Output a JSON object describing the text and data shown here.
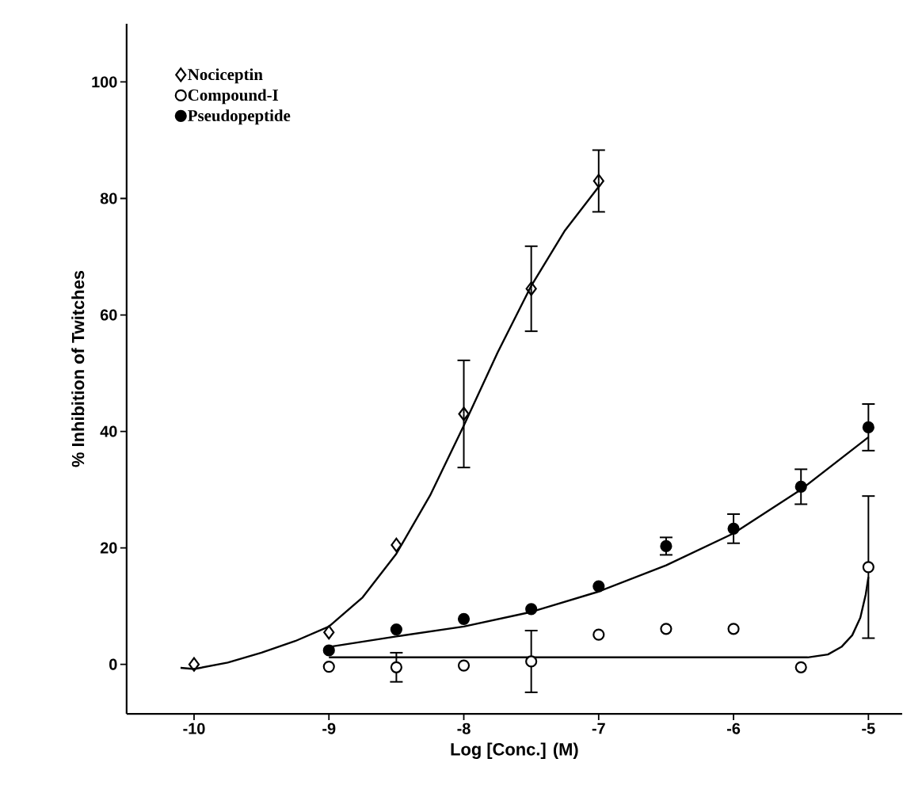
{
  "chart_data": {
    "type": "scatter",
    "xlabel": "Log [Conc.] (M)",
    "ylabel": "% Inhibition of Twitches",
    "xlim": [
      -10.5,
      -4.75
    ],
    "ylim": [
      -8.5,
      110
    ],
    "xticks": [
      -10,
      -9,
      -8,
      -7,
      -6,
      -5
    ],
    "yticks": [
      0,
      20,
      40,
      60,
      80,
      100
    ],
    "grid": false,
    "legend": "top left",
    "series": [
      {
        "name": "Nociceptin",
        "marker": "diamond",
        "color": "#000000",
        "x": [
          -10,
          -9,
          -8.5,
          -8,
          -7.5,
          -7
        ],
        "values": [
          0,
          5.5,
          20.5,
          43,
          64.5,
          83
        ],
        "errors": [
          null,
          null,
          null,
          9.2,
          7.3,
          5.3
        ]
      },
      {
        "name": "Compound-I",
        "marker": "circle",
        "color": "#000000",
        "x": [
          -9,
          -8.5,
          -8,
          -7.5,
          -7,
          -6.5,
          -6,
          -5.5,
          -5
        ],
        "values": [
          -0.4,
          -0.5,
          -0.2,
          0.5,
          5.1,
          6.1,
          6.1,
          -0.5,
          16.7
        ],
        "errors": [
          null,
          [
            -3,
            2
          ],
          null,
          5.3,
          null,
          null,
          null,
          null,
          12.2
        ]
      },
      {
        "name": "Pseudopeptide",
        "marker": "circle",
        "color": "#000000",
        "x": [
          -9,
          -8.5,
          -8,
          -7.5,
          -7,
          -6.5,
          -6,
          -5.5,
          -5
        ],
        "values": [
          2.4,
          6,
          7.8,
          9.5,
          13.4,
          20.3,
          23.3,
          30.5,
          40.7
        ],
        "errors": [
          null,
          null,
          null,
          null,
          null,
          1.5,
          2.5,
          3,
          4
        ]
      },
      {
        "type": "line",
        "marker": "none",
        "line_style": "solid",
        "color": "#000000",
        "x": [
          -10.1,
          -10,
          -9.75,
          -9.5,
          -9.25,
          -9,
          -8.75,
          -8.5,
          -8.25,
          -8,
          -7.75,
          -7.5,
          -7.25,
          -7
        ],
        "values": [
          -0.6,
          -0.8,
          0.3,
          2,
          4,
          6.5,
          11.5,
          19,
          29,
          41,
          53.5,
          65,
          74.5,
          82
        ]
      },
      {
        "type": "line",
        "marker": "none",
        "line_style": "solid",
        "color": "#000000",
        "x": [
          -9,
          -7,
          -5.45,
          -5.3,
          -5.2,
          -5.12,
          -5.06,
          -5.02,
          -5
        ],
        "values": [
          1.2,
          1.2,
          1.2,
          1.7,
          3,
          5,
          8,
          12,
          15
        ]
      },
      {
        "type": "line",
        "marker": "none",
        "line_style": "solid",
        "color": "#000000",
        "x": [
          -9,
          -8.5,
          -8,
          -7.5,
          -7,
          -6.5,
          -6,
          -5.5,
          -5
        ],
        "values": [
          3,
          4.8,
          6.5,
          9,
          12.5,
          17,
          22.5,
          30,
          39
        ]
      }
    ]
  }
}
